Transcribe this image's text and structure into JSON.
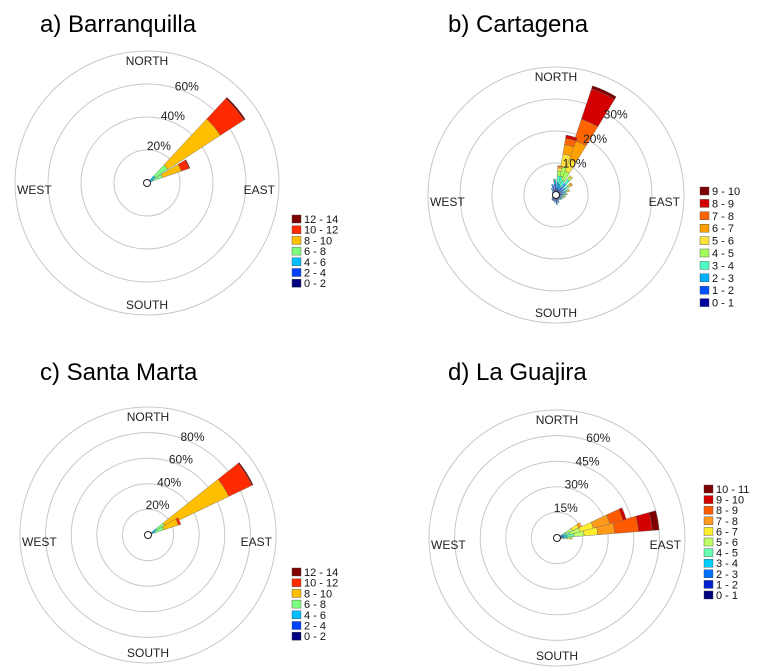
{
  "chart_data": [
    {
      "type": "wind-rose",
      "title": "a)  Barranquilla",
      "directions": [
        "NORTH",
        "EAST",
        "SOUTH",
        "WEST"
      ],
      "radial_ticks": [
        "20%",
        "40%",
        "60%"
      ],
      "radial_tick_values": [
        20,
        40,
        60
      ],
      "radial_max": 80,
      "legend": [
        "12 - 14",
        "10 - 12",
        "8 - 10",
        "6 - 8",
        "4 - 6",
        "2 - 4",
        "0 - 2"
      ],
      "legend_colors": [
        "#7f0000",
        "#ff2a00",
        "#ffbf00",
        "#7fff7f",
        "#00bfff",
        "#0040ff",
        "#00007f"
      ],
      "petals": [
        {
          "direction_deg": 50,
          "width_deg": 14,
          "cumulative": [
            0.5,
            2,
            6,
            15,
            53,
            70,
            71
          ]
        },
        {
          "direction_deg": 65,
          "width_deg": 12,
          "cumulative": [
            0.5,
            1.5,
            4,
            10,
            22,
            27,
            27.5
          ]
        }
      ]
    },
    {
      "type": "wind-rose",
      "title": "b)  Cartagena",
      "directions": [
        "NORTH",
        "EAST",
        "SOUTH",
        "WEST"
      ],
      "radial_ticks": [
        "10%",
        "20%",
        "30%"
      ],
      "radial_tick_values": [
        10,
        20,
        30
      ],
      "radial_max": 40,
      "legend": [
        "9 - 10",
        "8 - 9",
        "7 - 8",
        "6 - 7",
        "5 - 6",
        "4 - 5",
        "3 - 4",
        "2 - 3",
        "1 - 2",
        "0 - 1"
      ],
      "legend_colors": [
        "#7f0000",
        "#d40000",
        "#ff6400",
        "#ffa000",
        "#ffe23a",
        "#a6ff59",
        "#4dffc4",
        "#00b0ff",
        "#0050ff",
        "#0000a0"
      ],
      "petals": [
        {
          "direction_deg": 25,
          "width_deg": 13,
          "cumulative": [
            1,
            2,
            3,
            5,
            8,
            12,
            18,
            25,
            35,
            36
          ]
        },
        {
          "direction_deg": 15,
          "width_deg": 11,
          "cumulative": [
            1,
            2,
            3.5,
            6,
            9,
            13,
            16,
            18,
            19,
            19
          ]
        },
        {
          "direction_deg": 8,
          "width_deg": 9,
          "cumulative": [
            1,
            2.5,
            4,
            6,
            7.5,
            8.5,
            9,
            9.2,
            9.2,
            9.2
          ]
        },
        {
          "direction_deg": 40,
          "width_deg": 9,
          "cumulative": [
            1.5,
            3,
            4.5,
            6,
            7,
            7.5,
            7.5,
            7.5,
            7.5,
            7.5
          ]
        },
        {
          "direction_deg": 355,
          "width_deg": 9,
          "cumulative": [
            2,
            3.5,
            4.5,
            5,
            5,
            5,
            5,
            5,
            5,
            5
          ]
        },
        {
          "direction_deg": 340,
          "width_deg": 9,
          "cumulative": [
            1.5,
            3,
            3.5,
            3.5,
            3.5,
            3.5,
            3.5,
            3.5,
            3.5,
            3.5
          ]
        },
        {
          "direction_deg": 325,
          "width_deg": 9,
          "cumulative": [
            1,
            2,
            2.5,
            2.5,
            2.5,
            2.5,
            2.5,
            2.5,
            2.5,
            2.5
          ]
        },
        {
          "direction_deg": 310,
          "width_deg": 9,
          "cumulative": [
            1,
            1.5,
            1.5,
            1.5,
            1.5,
            1.5,
            1.5,
            1.5,
            1.5,
            1.5
          ]
        },
        {
          "direction_deg": 295,
          "width_deg": 9,
          "cumulative": [
            1,
            1.2,
            1.2,
            1.2,
            1.2,
            1.2,
            1.2,
            1.2,
            1.2,
            1.2
          ]
        },
        {
          "direction_deg": 280,
          "width_deg": 9,
          "cumulative": [
            1,
            1,
            1,
            1,
            1,
            1,
            1,
            1,
            1,
            1
          ]
        },
        {
          "direction_deg": 265,
          "width_deg": 9,
          "cumulative": [
            1,
            1,
            1,
            1,
            1,
            1,
            1,
            1,
            1,
            1
          ]
        },
        {
          "direction_deg": 250,
          "width_deg": 9,
          "cumulative": [
            1.2,
            1.2,
            1.2,
            1.2,
            1.2,
            1.2,
            1.2,
            1.2,
            1.2,
            1.2
          ]
        },
        {
          "direction_deg": 235,
          "width_deg": 9,
          "cumulative": [
            1.2,
            1.5,
            1.5,
            1.5,
            1.5,
            1.5,
            1.5,
            1.5,
            1.5,
            1.5
          ]
        },
        {
          "direction_deg": 220,
          "width_deg": 9,
          "cumulative": [
            1.5,
            2,
            2,
            2,
            2,
            2,
            2,
            2,
            2,
            2
          ]
        },
        {
          "direction_deg": 205,
          "width_deg": 9,
          "cumulative": [
            1.5,
            2,
            2,
            2,
            2,
            2,
            2,
            2,
            2,
            2
          ]
        },
        {
          "direction_deg": 190,
          "width_deg": 9,
          "cumulative": [
            1.5,
            2,
            2.3,
            2.3,
            2.3,
            2.3,
            2.3,
            2.3,
            2.3,
            2.3
          ]
        },
        {
          "direction_deg": 175,
          "width_deg": 9,
          "cumulative": [
            1.5,
            2.5,
            3,
            3,
            3,
            3,
            3,
            3,
            3,
            3
          ]
        },
        {
          "direction_deg": 160,
          "width_deg": 9,
          "cumulative": [
            1.5,
            2,
            2.5,
            2.5,
            2.5,
            2.5,
            2.5,
            2.5,
            2.5,
            2.5
          ]
        },
        {
          "direction_deg": 145,
          "width_deg": 9,
          "cumulative": [
            1,
            1.5,
            1.8,
            1.8,
            1.8,
            1.8,
            1.8,
            1.8,
            1.8,
            1.8
          ]
        },
        {
          "direction_deg": 130,
          "width_deg": 9,
          "cumulative": [
            1,
            1.5,
            2,
            2.2,
            2.2,
            2.2,
            2.2,
            2.2,
            2.2,
            2.2
          ]
        },
        {
          "direction_deg": 115,
          "width_deg": 9,
          "cumulative": [
            1,
            1.5,
            2,
            2.5,
            2.5,
            2.5,
            2.5,
            2.5,
            2.5,
            2.5
          ]
        },
        {
          "direction_deg": 100,
          "width_deg": 9,
          "cumulative": [
            1,
            1.5,
            2,
            2.5,
            3,
            3,
            3,
            3,
            3,
            3
          ]
        },
        {
          "direction_deg": 85,
          "width_deg": 9,
          "cumulative": [
            1,
            2,
            2.5,
            3,
            3.5,
            3.5,
            3.5,
            3.5,
            3.5,
            3.5
          ]
        },
        {
          "direction_deg": 70,
          "width_deg": 9,
          "cumulative": [
            1,
            2,
            3,
            3.5,
            4,
            4.5,
            4.5,
            4.5,
            4.5,
            4.5
          ]
        },
        {
          "direction_deg": 55,
          "width_deg": 9,
          "cumulative": [
            1.5,
            2.5,
            3.5,
            4.5,
            5,
            5.5,
            6,
            6,
            6,
            6
          ]
        }
      ]
    },
    {
      "type": "wind-rose",
      "title": "c)  Santa Marta",
      "directions": [
        "NORTH",
        "EAST",
        "SOUTH",
        "WEST"
      ],
      "radial_ticks": [
        "20%",
        "40%",
        "60%",
        "80%"
      ],
      "radial_tick_values": [
        20,
        40,
        60,
        80
      ],
      "radial_max": 100,
      "legend": [
        "12 - 14",
        "10 - 12",
        "8 - 10",
        "6 - 8",
        "4 - 6",
        "2 - 4",
        "0 - 2"
      ],
      "legend_colors": [
        "#7f0000",
        "#ff2a00",
        "#ffbf00",
        "#7fff7f",
        "#00bfff",
        "#0040ff",
        "#00007f"
      ],
      "petals": [
        {
          "direction_deg": 58,
          "width_deg": 13,
          "cumulative": [
            0.5,
            3,
            8,
            15,
            70,
            90,
            91
          ]
        },
        {
          "direction_deg": 66,
          "width_deg": 12,
          "cumulative": [
            0.5,
            2,
            6,
            13,
            25,
            27,
            27
          ]
        }
      ]
    },
    {
      "type": "wind-rose",
      "title": "d)  La Guajira",
      "directions": [
        "NORTH",
        "EAST",
        "SOUTH",
        "WEST"
      ],
      "radial_ticks": [
        "15%",
        "30%",
        "45%",
        "60%"
      ],
      "radial_tick_values": [
        15,
        30,
        45,
        60
      ],
      "radial_max": 75,
      "legend": [
        "10 - 11",
        "9 - 10",
        "8 - 9",
        "7 - 8",
        "6 - 7",
        "5 - 6",
        "4 - 5",
        "3 - 4",
        "2 - 3",
        "1 - 2",
        "0 - 1"
      ],
      "legend_colors": [
        "#7f0000",
        "#d40000",
        "#ff5a00",
        "#ff9a1a",
        "#ffee2e",
        "#bfff66",
        "#66ffb3",
        "#00d0ff",
        "#0070ff",
        "#0020d0",
        "#00007f"
      ],
      "petals": [
        {
          "direction_deg": 80,
          "width_deg": 11,
          "cumulative": [
            1,
            2,
            4,
            6,
            10,
            16,
            24,
            34,
            48,
            56,
            60
          ]
        },
        {
          "direction_deg": 70,
          "width_deg": 10,
          "cumulative": [
            1,
            2,
            3,
            5,
            8,
            14,
            22,
            32,
            40,
            42,
            42
          ]
        },
        {
          "direction_deg": 60,
          "width_deg": 9,
          "cumulative": [
            1,
            2,
            3,
            4,
            6,
            10,
            14,
            16,
            16,
            16,
            16
          ]
        },
        {
          "direction_deg": 90,
          "width_deg": 9,
          "cumulative": [
            1,
            2,
            3,
            4,
            6,
            8,
            9,
            9,
            9,
            9,
            9
          ]
        }
      ]
    }
  ]
}
